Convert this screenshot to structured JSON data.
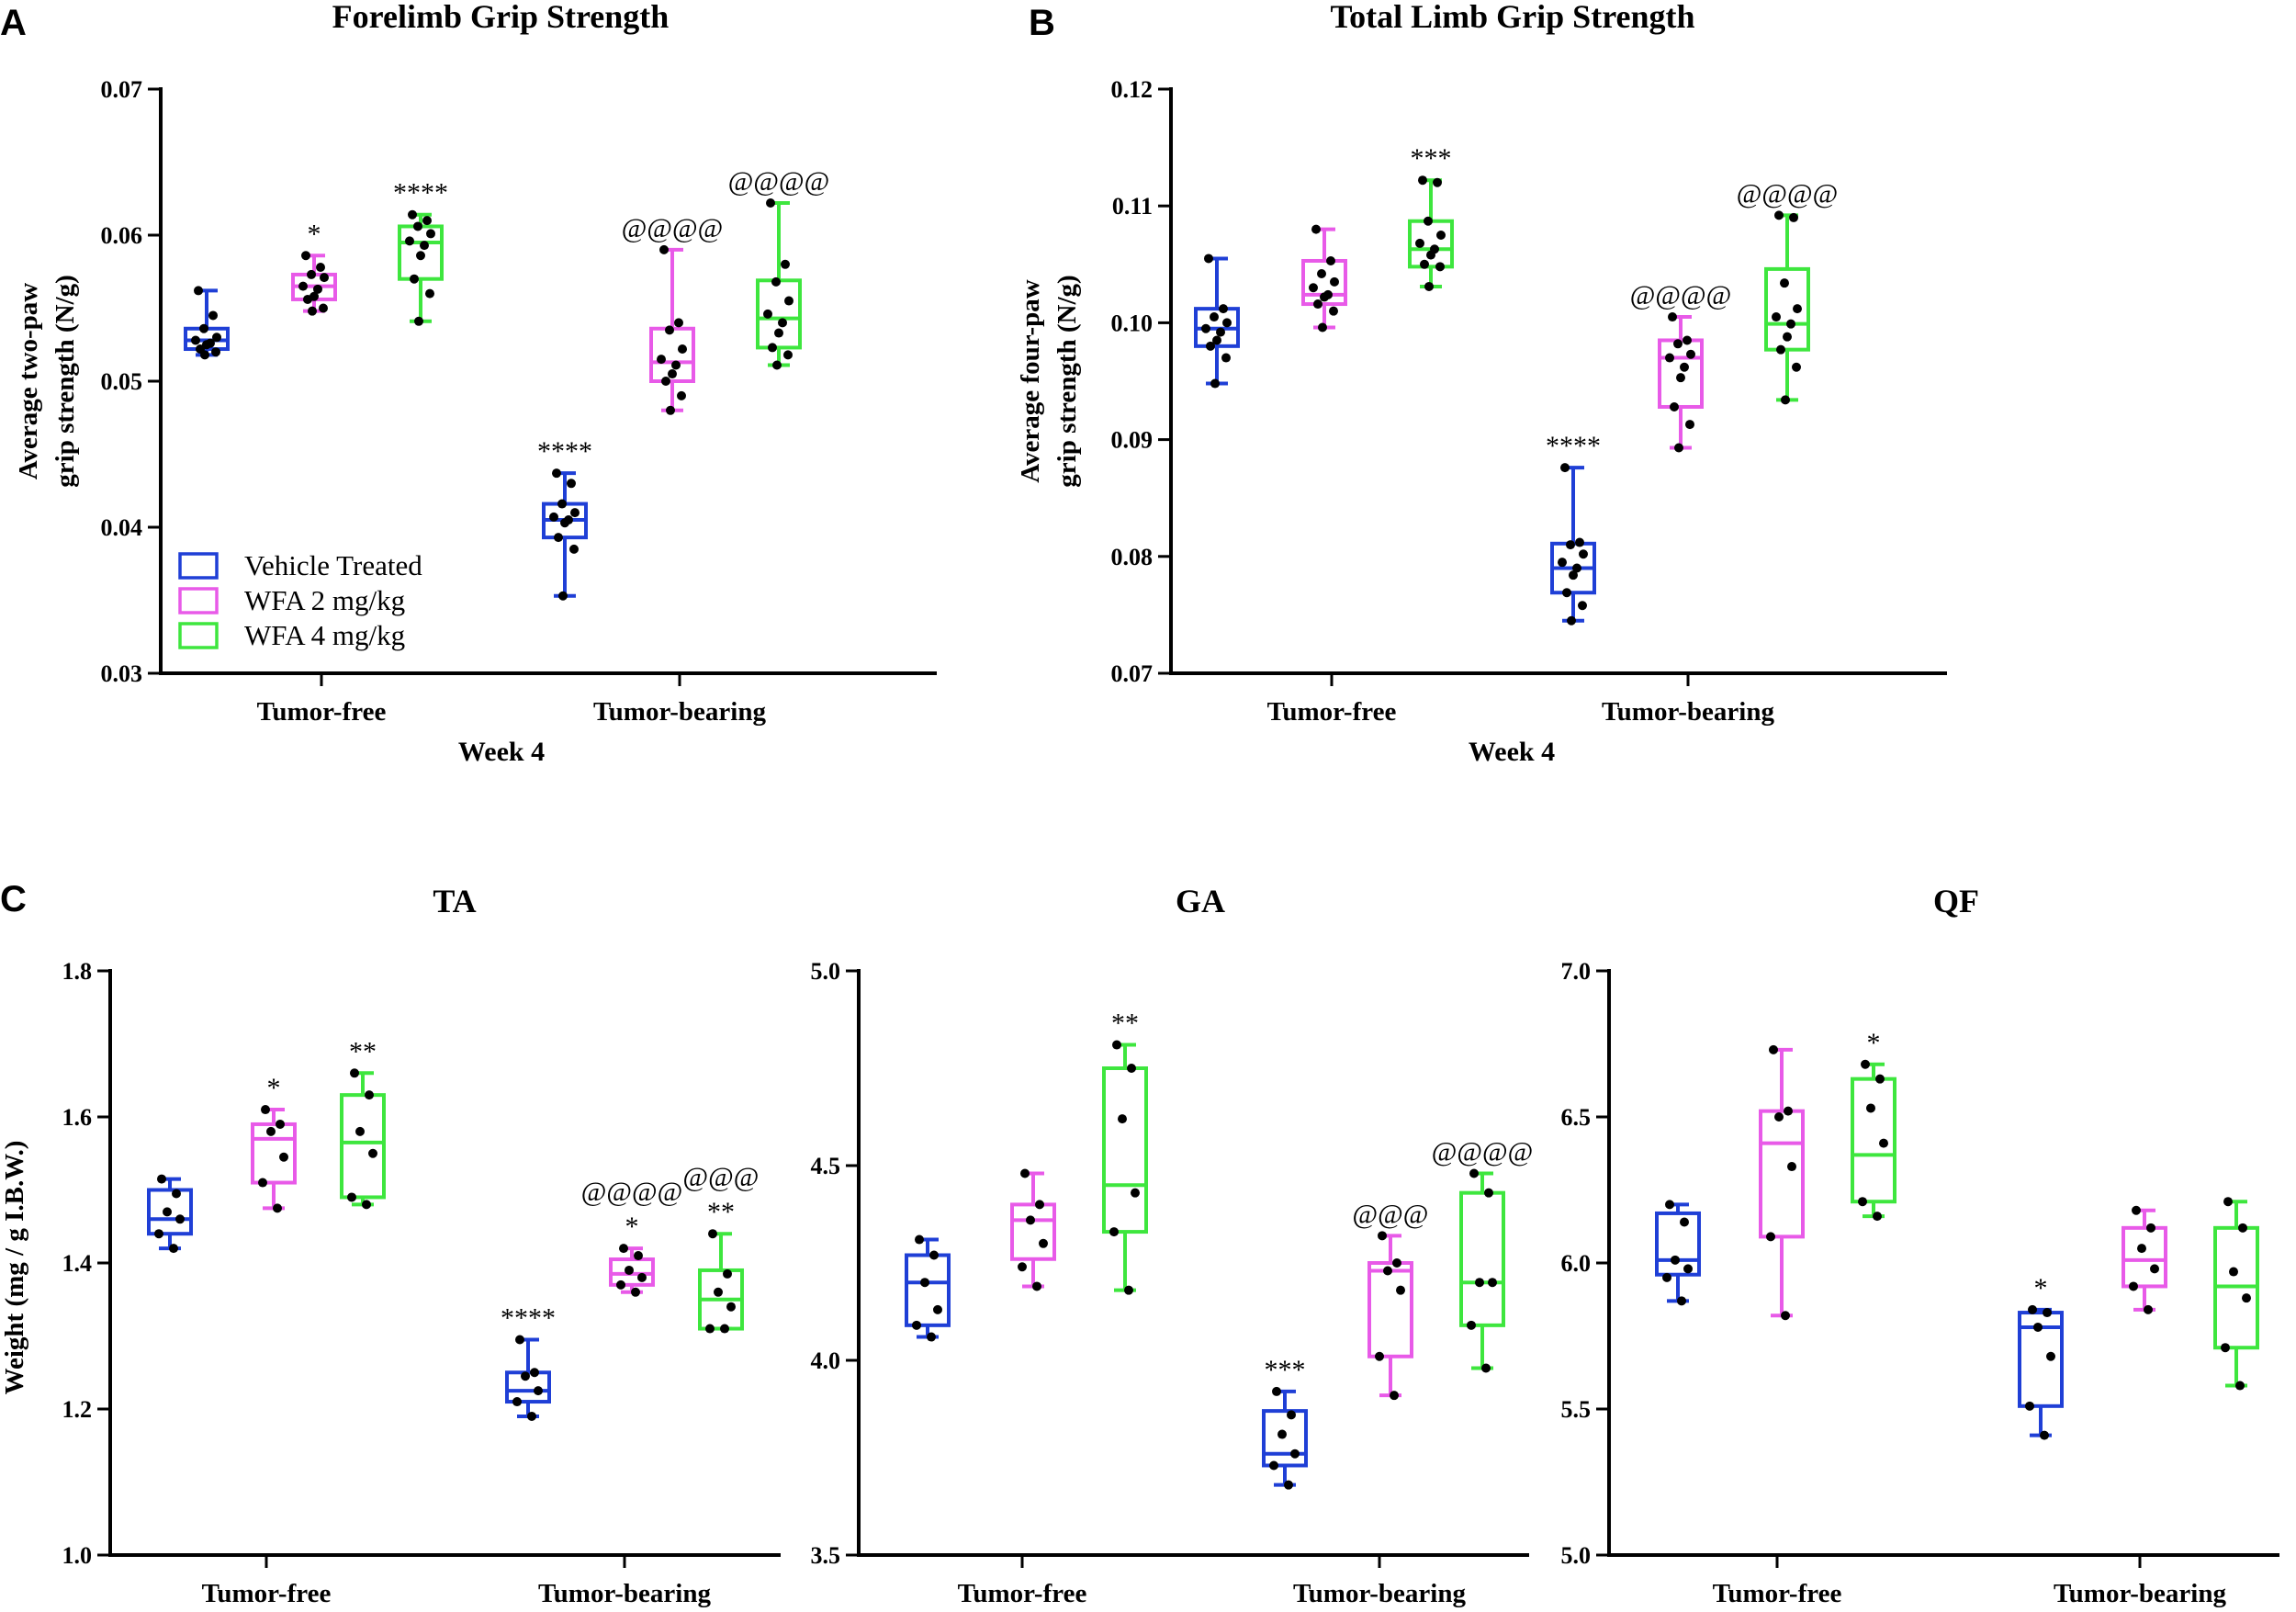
{
  "chart_data": [
    {
      "type": "box",
      "panel_label": "A",
      "title": "Forelimb Grip Strength",
      "ylabel_lines": [
        "Average two-paw",
        "grip strength (N/g)"
      ],
      "xlabel": "Week 4",
      "ylim": [
        0.03,
        0.07
      ],
      "yticks": [
        0.03,
        0.04,
        0.05,
        0.06,
        0.07
      ],
      "ytick_labels": [
        "0.03",
        "0.04",
        "0.05",
        "0.06",
        "0.07"
      ],
      "categories": [
        "Tumor-free",
        "Tumor-bearing"
      ],
      "legend": [
        {
          "name": "Vehicle Treated",
          "color": "#1f3fd6"
        },
        {
          "name": "WFA 2 mg/kg",
          "color": "#e85ae8"
        },
        {
          "name": "WFA 4 mg/kg",
          "color": "#3ee63e"
        }
      ],
      "series": [
        {
          "name": "Vehicle Treated",
          "color": "#1f3fd6",
          "boxes": [
            {
              "category": "Tumor-free",
              "min": 0.0518,
              "q1": 0.0522,
              "median": 0.0528,
              "q3": 0.0536,
              "max": 0.0562,
              "points": [
                0.0562,
                0.0545,
                0.0536,
                0.053,
                0.0528,
                0.0526,
                0.0525,
                0.0522,
                0.052,
                0.0518
              ],
              "sig": []
            },
            {
              "category": "Tumor-bearing",
              "min": 0.0353,
              "q1": 0.0393,
              "median": 0.0405,
              "q3": 0.0416,
              "max": 0.0437,
              "points": [
                0.0437,
                0.043,
                0.0416,
                0.041,
                0.0407,
                0.0405,
                0.0403,
                0.0393,
                0.0385,
                0.0353
              ],
              "sig": [
                "****"
              ]
            }
          ]
        },
        {
          "name": "WFA 2 mg/kg",
          "color": "#e85ae8",
          "boxes": [
            {
              "category": "Tumor-free",
              "min": 0.0548,
              "q1": 0.0556,
              "median": 0.0565,
              "q3": 0.0573,
              "max": 0.0586,
              "points": [
                0.0586,
                0.0578,
                0.0573,
                0.0571,
                0.0565,
                0.0563,
                0.0558,
                0.0556,
                0.055,
                0.0548
              ],
              "sig": [
                "*"
              ]
            },
            {
              "category": "Tumor-bearing",
              "min": 0.048,
              "q1": 0.05,
              "median": 0.0513,
              "q3": 0.0536,
              "max": 0.059,
              "points": [
                0.059,
                0.054,
                0.0535,
                0.0522,
                0.0515,
                0.0511,
                0.0505,
                0.05,
                0.049,
                0.048
              ],
              "sig": [
                "@@@@"
              ]
            }
          ]
        },
        {
          "name": "WFA 4 mg/kg",
          "color": "#3ee63e",
          "boxes": [
            {
              "category": "Tumor-free",
              "min": 0.0541,
              "q1": 0.057,
              "median": 0.0595,
              "q3": 0.0606,
              "max": 0.0614,
              "points": [
                0.0614,
                0.061,
                0.0606,
                0.0601,
                0.0596,
                0.0593,
                0.0586,
                0.057,
                0.056,
                0.0541
              ],
              "sig": [
                "****"
              ]
            },
            {
              "category": "Tumor-bearing",
              "min": 0.0511,
              "q1": 0.0523,
              "median": 0.0543,
              "q3": 0.0569,
              "max": 0.0622,
              "points": [
                0.0622,
                0.058,
                0.0568,
                0.0555,
                0.0546,
                0.054,
                0.0533,
                0.0523,
                0.0518,
                0.0511
              ],
              "sig": [
                "@@@@"
              ]
            }
          ]
        }
      ]
    },
    {
      "type": "box",
      "panel_label": "B",
      "title": "Total Limb Grip Strength",
      "ylabel_lines": [
        "Average four-paw",
        "grip strength (N/g)"
      ],
      "xlabel": "Week 4",
      "ylim": [
        0.07,
        0.12
      ],
      "yticks": [
        0.07,
        0.08,
        0.09,
        0.1,
        0.11,
        0.12
      ],
      "ytick_labels": [
        "0.07",
        "0.08",
        "0.09",
        "0.10",
        "0.11",
        "0.12"
      ],
      "categories": [
        "Tumor-free",
        "Tumor-bearing"
      ],
      "legend": [],
      "series": [
        {
          "name": "Vehicle Treated",
          "color": "#1f3fd6",
          "boxes": [
            {
              "category": "Tumor-free",
              "min": 0.0948,
              "q1": 0.098,
              "median": 0.0995,
              "q3": 0.1012,
              "max": 0.1055,
              "points": [
                0.1055,
                0.1012,
                0.1005,
                0.1,
                0.0995,
                0.0992,
                0.0985,
                0.098,
                0.097,
                0.0948
              ],
              "sig": []
            },
            {
              "category": "Tumor-bearing",
              "min": 0.0745,
              "q1": 0.0769,
              "median": 0.079,
              "q3": 0.0811,
              "max": 0.0876,
              "points": [
                0.0876,
                0.0812,
                0.081,
                0.0802,
                0.0795,
                0.079,
                0.0784,
                0.0769,
                0.0758,
                0.0745
              ],
              "sig": [
                "****"
              ]
            }
          ]
        },
        {
          "name": "WFA 2 mg/kg",
          "color": "#e85ae8",
          "boxes": [
            {
              "category": "Tumor-free",
              "min": 0.0996,
              "q1": 0.1016,
              "median": 0.1024,
              "q3": 0.1053,
              "max": 0.108,
              "points": [
                0.108,
                0.1053,
                0.1042,
                0.1035,
                0.103,
                0.1024,
                0.1022,
                0.1016,
                0.101,
                0.0996
              ],
              "sig": []
            },
            {
              "category": "Tumor-bearing",
              "min": 0.0893,
              "q1": 0.0928,
              "median": 0.097,
              "q3": 0.0985,
              "max": 0.1005,
              "points": [
                0.1005,
                0.0985,
                0.0982,
                0.0973,
                0.097,
                0.0962,
                0.0953,
                0.0928,
                0.0913,
                0.0893
              ],
              "sig": [
                "@@@@"
              ]
            }
          ]
        },
        {
          "name": "WFA 4 mg/kg",
          "color": "#3ee63e",
          "boxes": [
            {
              "category": "Tumor-free",
              "min": 0.1031,
              "q1": 0.1048,
              "median": 0.1063,
              "q3": 0.1087,
              "max": 0.1122,
              "points": [
                0.1122,
                0.112,
                0.1087,
                0.1075,
                0.1068,
                0.1063,
                0.1058,
                0.105,
                0.1048,
                0.1031
              ],
              "sig": [
                "***"
              ]
            },
            {
              "category": "Tumor-bearing",
              "min": 0.0934,
              "q1": 0.0977,
              "median": 0.0999,
              "q3": 0.1046,
              "max": 0.1092,
              "points": [
                0.1092,
                0.109,
                0.1034,
                0.1012,
                0.1005,
                0.0999,
                0.0988,
                0.0977,
                0.0962,
                0.0934
              ],
              "sig": [
                "@@@@"
              ]
            }
          ]
        }
      ]
    },
    {
      "type": "box",
      "panel_label": "C",
      "title": "TA",
      "ylabel_lines": [
        "Weight (mg / g I.B.W.)"
      ],
      "xlabel": "",
      "ylim": [
        1.0,
        1.8
      ],
      "yticks": [
        1.0,
        1.2,
        1.4,
        1.6,
        1.8
      ],
      "ytick_labels": [
        "1.0",
        "1.2",
        "1.4",
        "1.6",
        "1.8"
      ],
      "categories": [
        "Tumor-free",
        "Tumor-bearing"
      ],
      "legend": [],
      "series": [
        {
          "name": "Vehicle Treated",
          "color": "#1f3fd6",
          "boxes": [
            {
              "category": "Tumor-free",
              "min": 1.42,
              "q1": 1.44,
              "median": 1.46,
              "q3": 1.5,
              "max": 1.515,
              "points": [
                1.515,
                1.495,
                1.47,
                1.46,
                1.44,
                1.42
              ],
              "sig": []
            },
            {
              "category": "Tumor-bearing",
              "min": 1.19,
              "q1": 1.21,
              "median": 1.225,
              "q3": 1.25,
              "max": 1.295,
              "points": [
                1.295,
                1.25,
                1.245,
                1.225,
                1.21,
                1.19
              ],
              "sig": [
                "****"
              ]
            }
          ]
        },
        {
          "name": "WFA 2 mg/kg",
          "color": "#e85ae8",
          "boxes": [
            {
              "category": "Tumor-free",
              "min": 1.475,
              "q1": 1.51,
              "median": 1.57,
              "q3": 1.59,
              "max": 1.61,
              "points": [
                1.61,
                1.59,
                1.58,
                1.545,
                1.51,
                1.475
              ],
              "sig": [
                "*"
              ]
            },
            {
              "category": "Tumor-bearing",
              "min": 1.36,
              "q1": 1.37,
              "median": 1.385,
              "q3": 1.405,
              "max": 1.42,
              "points": [
                1.42,
                1.41,
                1.39,
                1.38,
                1.37,
                1.36
              ],
              "sig": [
                "@@@@",
                "*"
              ]
            }
          ]
        },
        {
          "name": "WFA 4 mg/kg",
          "color": "#3ee63e",
          "boxes": [
            {
              "category": "Tumor-free",
              "min": 1.48,
              "q1": 1.49,
              "median": 1.565,
              "q3": 1.63,
              "max": 1.66,
              "points": [
                1.66,
                1.63,
                1.58,
                1.55,
                1.49,
                1.48
              ],
              "sig": [
                "**"
              ]
            },
            {
              "category": "Tumor-bearing",
              "min": 1.31,
              "q1": 1.31,
              "median": 1.35,
              "q3": 1.39,
              "max": 1.44,
              "points": [
                1.44,
                1.385,
                1.36,
                1.34,
                1.31,
                1.31
              ],
              "sig": [
                "@@@",
                "**"
              ]
            }
          ]
        }
      ]
    },
    {
      "type": "box",
      "panel_label": "",
      "title": "GA",
      "ylabel_lines": [],
      "xlabel": "",
      "ylim": [
        3.5,
        5.0
      ],
      "yticks": [
        3.5,
        4.0,
        4.5,
        5.0
      ],
      "ytick_labels": [
        "3.5",
        "4.0",
        "4.5",
        "5.0"
      ],
      "categories": [
        "Tumor-free",
        "Tumor-bearing"
      ],
      "legend": [],
      "series": [
        {
          "name": "Vehicle Treated",
          "color": "#1f3fd6",
          "boxes": [
            {
              "category": "Tumor-free",
              "min": 4.06,
              "q1": 4.09,
              "median": 4.2,
              "q3": 4.27,
              "max": 4.31,
              "points": [
                4.31,
                4.27,
                4.2,
                4.13,
                4.09,
                4.06
              ],
              "sig": []
            },
            {
              "category": "Tumor-bearing",
              "min": 3.68,
              "q1": 3.73,
              "median": 3.76,
              "q3": 3.87,
              "max": 3.92,
              "points": [
                3.92,
                3.86,
                3.81,
                3.76,
                3.73,
                3.68
              ],
              "sig": [
                "***"
              ]
            }
          ]
        },
        {
          "name": "WFA 2 mg/kg",
          "color": "#e85ae8",
          "boxes": [
            {
              "category": "Tumor-free",
              "min": 4.19,
              "q1": 4.26,
              "median": 4.36,
              "q3": 4.4,
              "max": 4.48,
              "points": [
                4.48,
                4.4,
                4.36,
                4.3,
                4.24,
                4.19
              ],
              "sig": []
            },
            {
              "category": "Tumor-bearing",
              "min": 3.91,
              "q1": 4.01,
              "median": 4.23,
              "q3": 4.25,
              "max": 4.32,
              "points": [
                4.32,
                4.25,
                4.23,
                4.18,
                4.01,
                3.91
              ],
              "sig": [
                "@@@"
              ]
            }
          ]
        },
        {
          "name": "WFA 4 mg/kg",
          "color": "#3ee63e",
          "boxes": [
            {
              "category": "Tumor-free",
              "min": 4.18,
              "q1": 4.33,
              "median": 4.45,
              "q3": 4.75,
              "max": 4.81,
              "points": [
                4.81,
                4.75,
                4.62,
                4.43,
                4.33,
                4.18
              ],
              "sig": [
                "**"
              ]
            },
            {
              "category": "Tumor-bearing",
              "min": 3.98,
              "q1": 4.09,
              "median": 4.2,
              "q3": 4.43,
              "max": 4.48,
              "points": [
                4.48,
                4.43,
                4.2,
                4.2,
                4.09,
                3.98
              ],
              "sig": [
                "@@@@"
              ]
            }
          ]
        }
      ]
    },
    {
      "type": "box",
      "panel_label": "",
      "title": "QF",
      "ylabel_lines": [],
      "xlabel": "",
      "ylim": [
        5.0,
        7.0
      ],
      "yticks": [
        5.0,
        5.5,
        6.0,
        6.5,
        7.0
      ],
      "ytick_labels": [
        "5.0",
        "5.5",
        "6.0",
        "6.5",
        "7.0"
      ],
      "categories": [
        "Tumor-free",
        "Tumor-bearing"
      ],
      "legend": [],
      "series": [
        {
          "name": "Vehicle Treated",
          "color": "#1f3fd6",
          "boxes": [
            {
              "category": "Tumor-free",
              "min": 5.87,
              "q1": 5.96,
              "median": 6.01,
              "q3": 6.17,
              "max": 6.2,
              "points": [
                6.2,
                6.14,
                6.01,
                5.98,
                5.95,
                5.87
              ],
              "sig": []
            },
            {
              "category": "Tumor-bearing",
              "min": 5.41,
              "q1": 5.51,
              "median": 5.78,
              "q3": 5.83,
              "max": 5.84,
              "points": [
                5.84,
                5.83,
                5.78,
                5.68,
                5.51,
                5.41
              ],
              "sig": [
                "*"
              ]
            }
          ]
        },
        {
          "name": "WFA 2 mg/kg",
          "color": "#e85ae8",
          "boxes": [
            {
              "category": "Tumor-free",
              "min": 5.82,
              "q1": 6.09,
              "median": 6.41,
              "q3": 6.52,
              "max": 6.73,
              "points": [
                6.73,
                6.52,
                6.5,
                6.33,
                6.09,
                5.82
              ],
              "sig": []
            },
            {
              "category": "Tumor-bearing",
              "min": 5.84,
              "q1": 5.92,
              "median": 6.01,
              "q3": 6.12,
              "max": 6.18,
              "points": [
                6.18,
                6.12,
                6.05,
                5.98,
                5.92,
                5.84
              ],
              "sig": []
            }
          ]
        },
        {
          "name": "WFA 4 mg/kg",
          "color": "#3ee63e",
          "boxes": [
            {
              "category": "Tumor-free",
              "min": 6.16,
              "q1": 6.21,
              "median": 6.37,
              "q3": 6.63,
              "max": 6.68,
              "points": [
                6.68,
                6.63,
                6.53,
                6.41,
                6.21,
                6.16
              ],
              "sig": [
                "*"
              ]
            },
            {
              "category": "Tumor-bearing",
              "min": 5.58,
              "q1": 5.71,
              "median": 5.92,
              "q3": 6.12,
              "max": 6.21,
              "points": [
                6.21,
                6.12,
                5.97,
                5.88,
                5.71,
                5.58
              ],
              "sig": []
            }
          ]
        }
      ]
    }
  ]
}
